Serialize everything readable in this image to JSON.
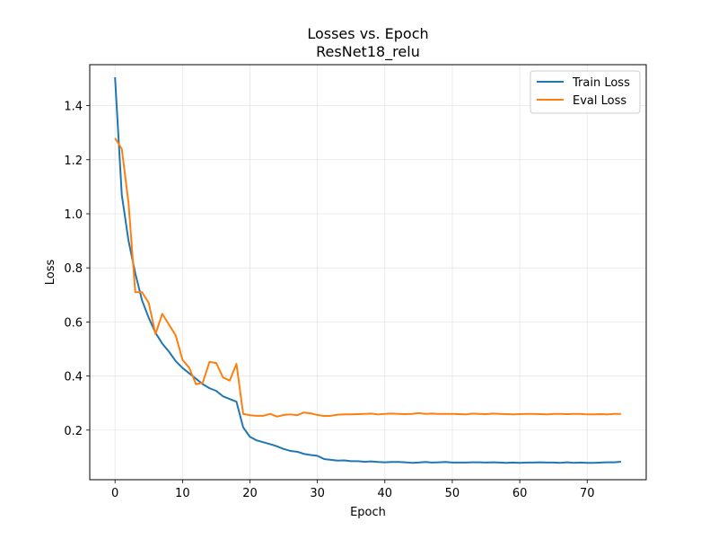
{
  "chart_data": {
    "type": "line",
    "title": "Losses vs. Epoch",
    "subtitle": "ResNet18_relu",
    "xlabel": "Epoch",
    "ylabel": "Loss",
    "xlim": [
      -3.75,
      78.75
    ],
    "ylim": [
      0.0165,
      1.5515
    ],
    "xticks": [
      0,
      10,
      20,
      30,
      40,
      50,
      60,
      70
    ],
    "yticks": [
      0.2,
      0.4,
      0.6,
      0.8,
      1.0,
      1.2,
      1.4
    ],
    "ytick_labels": [
      "0.2",
      "0.4",
      "0.6",
      "0.8",
      "1.0",
      "1.2",
      "1.4"
    ],
    "grid": true,
    "legend_position": "upper-right",
    "series": [
      {
        "name": "Train Loss",
        "color": "#1f77b4",
        "x": [
          0,
          1,
          2,
          3,
          4,
          5,
          6,
          7,
          8,
          9,
          10,
          11,
          12,
          13,
          14,
          15,
          16,
          17,
          18,
          19,
          20,
          21,
          22,
          23,
          24,
          25,
          26,
          27,
          28,
          29,
          30,
          31,
          32,
          33,
          34,
          35,
          36,
          37,
          38,
          39,
          40,
          41,
          42,
          43,
          44,
          45,
          46,
          47,
          48,
          49,
          50,
          51,
          52,
          53,
          54,
          55,
          56,
          57,
          58,
          59,
          60,
          61,
          62,
          63,
          64,
          65,
          66,
          67,
          68,
          69,
          70,
          71,
          72,
          73,
          74,
          75
        ],
        "values": [
          1.505,
          1.07,
          0.9,
          0.78,
          0.68,
          0.615,
          0.56,
          0.52,
          0.49,
          0.455,
          0.43,
          0.41,
          0.39,
          0.37,
          0.355,
          0.345,
          0.325,
          0.315,
          0.305,
          0.21,
          0.175,
          0.162,
          0.155,
          0.148,
          0.14,
          0.13,
          0.123,
          0.12,
          0.112,
          0.108,
          0.105,
          0.093,
          0.09,
          0.087,
          0.088,
          0.085,
          0.085,
          0.083,
          0.084,
          0.082,
          0.081,
          0.082,
          0.082,
          0.081,
          0.079,
          0.08,
          0.082,
          0.08,
          0.081,
          0.082,
          0.08,
          0.08,
          0.08,
          0.081,
          0.081,
          0.08,
          0.081,
          0.08,
          0.079,
          0.08,
          0.079,
          0.08,
          0.08,
          0.081,
          0.08,
          0.08,
          0.079,
          0.081,
          0.079,
          0.08,
          0.079,
          0.079,
          0.08,
          0.081,
          0.081,
          0.083
        ]
      },
      {
        "name": "Eval Loss",
        "color": "#ff7f0e",
        "x": [
          0,
          1,
          2,
          3,
          4,
          5,
          6,
          7,
          8,
          9,
          10,
          11,
          12,
          13,
          14,
          15,
          16,
          17,
          18,
          19,
          20,
          21,
          22,
          23,
          24,
          25,
          26,
          27,
          28,
          29,
          30,
          31,
          32,
          33,
          34,
          35,
          36,
          37,
          38,
          39,
          40,
          41,
          42,
          43,
          44,
          45,
          46,
          47,
          48,
          49,
          50,
          51,
          52,
          53,
          54,
          55,
          56,
          57,
          58,
          59,
          60,
          61,
          62,
          63,
          64,
          65,
          66,
          67,
          68,
          69,
          70,
          71,
          72,
          73,
          74,
          75
        ],
        "values": [
          1.28,
          1.24,
          1.04,
          0.71,
          0.71,
          0.67,
          0.555,
          0.63,
          0.59,
          0.55,
          0.46,
          0.43,
          0.37,
          0.375,
          0.452,
          0.448,
          0.395,
          0.383,
          0.445,
          0.26,
          0.255,
          0.253,
          0.253,
          0.26,
          0.25,
          0.256,
          0.258,
          0.255,
          0.265,
          0.262,
          0.256,
          0.252,
          0.253,
          0.257,
          0.258,
          0.258,
          0.259,
          0.26,
          0.261,
          0.258,
          0.26,
          0.261,
          0.26,
          0.259,
          0.26,
          0.263,
          0.26,
          0.261,
          0.26,
          0.26,
          0.26,
          0.259,
          0.258,
          0.261,
          0.26,
          0.259,
          0.261,
          0.26,
          0.259,
          0.258,
          0.259,
          0.26,
          0.26,
          0.259,
          0.258,
          0.26,
          0.26,
          0.259,
          0.26,
          0.26,
          0.258,
          0.258,
          0.259,
          0.258,
          0.26,
          0.26
        ]
      }
    ]
  }
}
